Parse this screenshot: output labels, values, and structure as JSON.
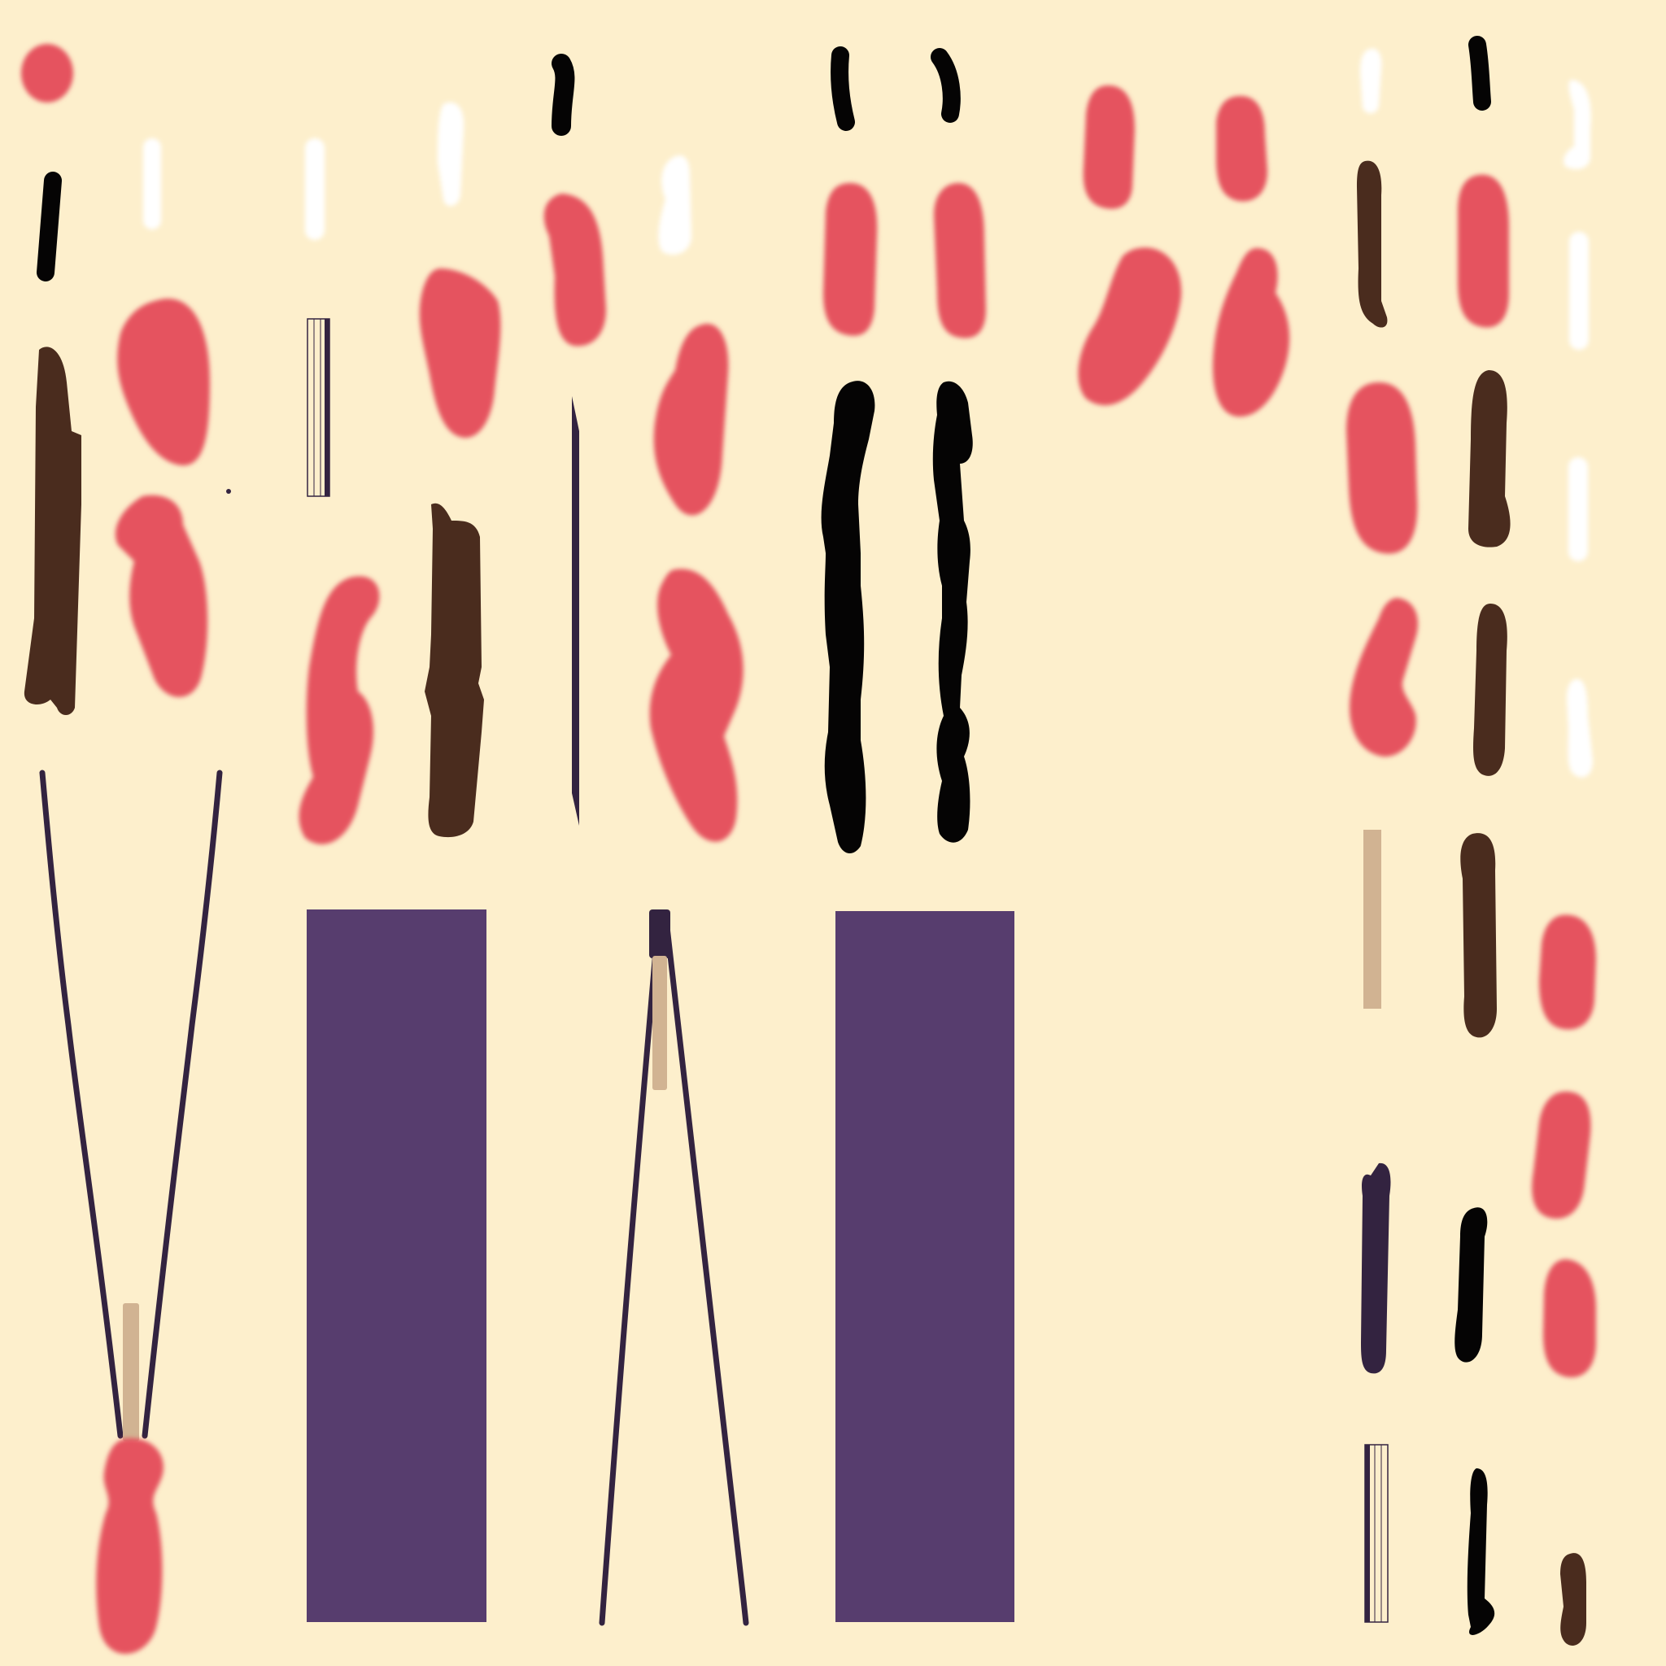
{
  "atlas": {
    "description_visible_text": "",
    "background_color": "#FDEFCC",
    "colors": {
      "coral": "#E5535F",
      "dark_brown": "#4A2C1E",
      "black": "#050404",
      "white": "#FFFFFF",
      "purple": "#573D6E",
      "dark_purple": "#332340",
      "tan": "#D1B392"
    }
  }
}
